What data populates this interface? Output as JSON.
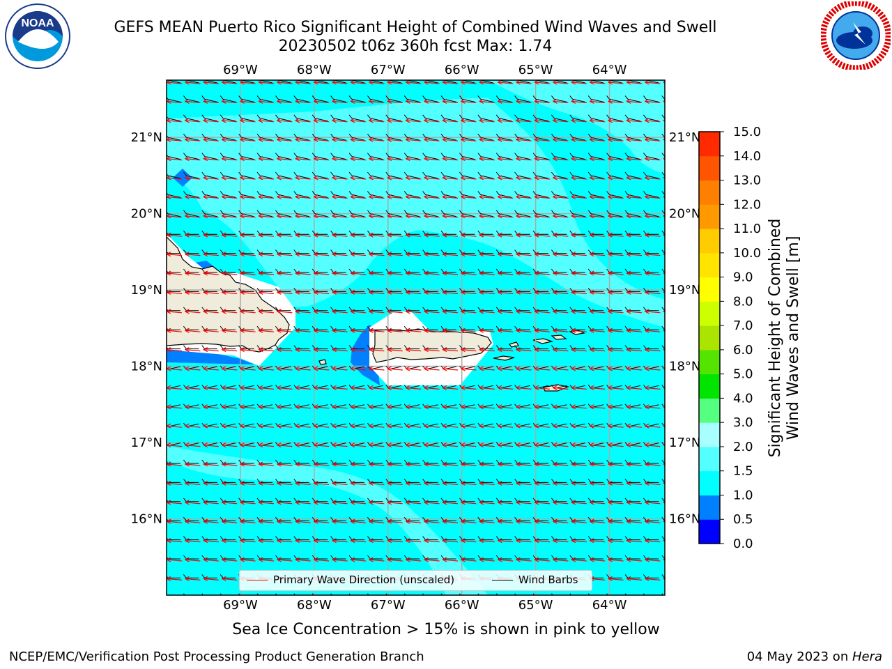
{
  "title": {
    "line1": "GEFS MEAN Puerto Rico Significant Height of Combined Wind Waves and Swell",
    "line2": "20230502 t06z 360h fcst   Max: 1.74"
  },
  "logos": {
    "noaa": {
      "icon": "noaa-logo",
      "text": "NOAA"
    },
    "nws": {
      "icon": "nws-logo"
    }
  },
  "map": {
    "lon_labels": [
      "69°W",
      "68°W",
      "67°W",
      "66°W",
      "65°W",
      "64°W"
    ],
    "lat_labels": [
      "21°N",
      "20°N",
      "19°N",
      "18°N",
      "17°N",
      "16°N"
    ],
    "lon_values": [
      -69,
      -68,
      -67,
      -66,
      -65,
      -64
    ],
    "lat_values": [
      21,
      20,
      19,
      18,
      17,
      16
    ],
    "extent": {
      "lon_min": -70.0,
      "lon_max": -63.25,
      "lat_min": 15.0,
      "lat_max": 21.75
    },
    "colors": {
      "ocean_main": "#00ffff",
      "ocean_light": "#53ffff",
      "ocean_dark": "#0080ff",
      "land": "#efecdc",
      "gridline": "#aaaaaa",
      "wave_arrow": "#ff0000",
      "wind_barb": "#000000"
    }
  },
  "legend": {
    "primary_wave": "Primary Wave Direction (unscaled)",
    "wind_barbs": "Wind Barbs"
  },
  "colorbar": {
    "title": "Significant Height of Combined Wind Waves and Swell [m]",
    "title_line1": "Significant Height of Combined",
    "title_line2": "Wind Waves and Swell [m]",
    "ticks": [
      "0.0",
      "0.5",
      "1.0",
      "1.5",
      "2.0",
      "3.0",
      "4.0",
      "5.0",
      "6.0",
      "7.0",
      "8.0",
      "9.0",
      "10.0",
      "11.0",
      "12.0",
      "13.0",
      "14.0",
      "15.0"
    ],
    "colors": [
      "#0000ff",
      "#0080ff",
      "#00ffff",
      "#53ffff",
      "#a8ffff",
      "#55ff80",
      "#00e400",
      "#55e400",
      "#aae400",
      "#ccff00",
      "#ffff00",
      "#ffe400",
      "#ffcc00",
      "#ff9900",
      "#ff8000",
      "#ff5500",
      "#ff2a00",
      "#ff0000"
    ]
  },
  "note": "Sea Ice Concentration > 15% is shown in pink to yellow",
  "footer": {
    "left": "NCEP/EMC/Verification Post Processing Product Generation Branch",
    "right_prefix": "04 May 2023 on ",
    "right_host": "Hera"
  }
}
